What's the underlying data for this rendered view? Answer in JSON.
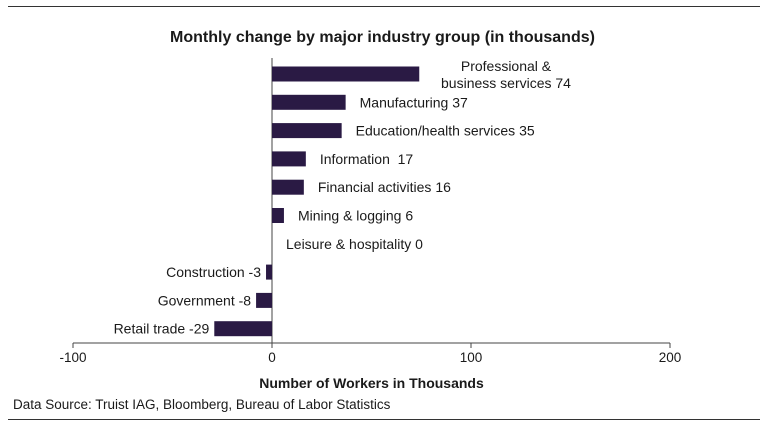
{
  "chart_data": {
    "type": "bar",
    "orientation": "horizontal",
    "title": "Monthly change by major industry group (in thousands)",
    "xlabel": "Number of Workers in Thousands",
    "ylabel": "",
    "xlim": [
      -100,
      200
    ],
    "xticks": [
      "-100",
      "0",
      "100",
      "200"
    ],
    "categories": [
      "Professional &\nbusiness services 74",
      "Manufacturing 37",
      "Education/health services 35",
      "Information  17",
      "Financial activities 16",
      "Mining & logging 6",
      "Leisure & hospitality 0",
      "Construction -3",
      "Government -8",
      "Retail trade -29"
    ],
    "values": [
      74,
      37,
      35,
      17,
      16,
      6,
      0,
      -3,
      -8,
      -29
    ],
    "bar_color": "#2a1a44",
    "grid": false,
    "legend": "none"
  },
  "source": "Data Source: Truist IAG, Bloomberg, Bureau of Labor Statistics"
}
